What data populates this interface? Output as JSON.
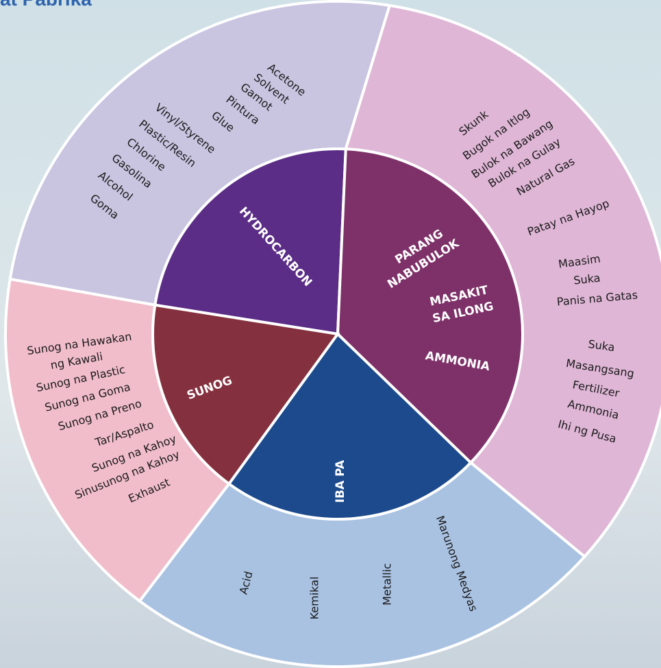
{
  "header": {
    "title": "at Pabrika"
  },
  "categories": [
    {
      "labels": [
        "HYDROCARBON"
      ],
      "items": [
        "Acetone",
        "Solvent",
        "Gamot",
        "Pintura",
        "Glue",
        "Vinyl/Styrene",
        "Plastic/Resin",
        "Chlorine",
        "Gasolina",
        "Alcohol",
        "Goma"
      ]
    },
    {
      "labels": [
        "PARANG",
        "NABUBULOK",
        "MASAKIT",
        "SA ILONG",
        "AMMONIA"
      ],
      "items": [
        "Skunk",
        "Bugok na Itlog",
        "Bulok na Bawang",
        "Bulok na Gulay",
        "Natural Gas",
        "Patay na Hayop",
        "Maasim",
        "Suka",
        "Panis na Gatas",
        "Suka",
        "Masangsang",
        "Fertilizer",
        "Ammonia",
        "Ihi ng Pusa"
      ]
    },
    {
      "labels": [
        "IBA PA"
      ],
      "items": [
        "Acid",
        "Kemikal",
        "Metallic",
        "Marunong Medyas"
      ]
    },
    {
      "labels": [
        "SUNOG"
      ],
      "items": [
        "Sunog na Hawakan",
        "ng Kawali",
        "Sunog na Plastic",
        "Sunog na Goma",
        "Sunog na Preno",
        "Tar/Aspalto",
        "Sunog na Kahoy",
        "Sinusunog na Kahoy",
        "Exhaust"
      ]
    }
  ]
}
